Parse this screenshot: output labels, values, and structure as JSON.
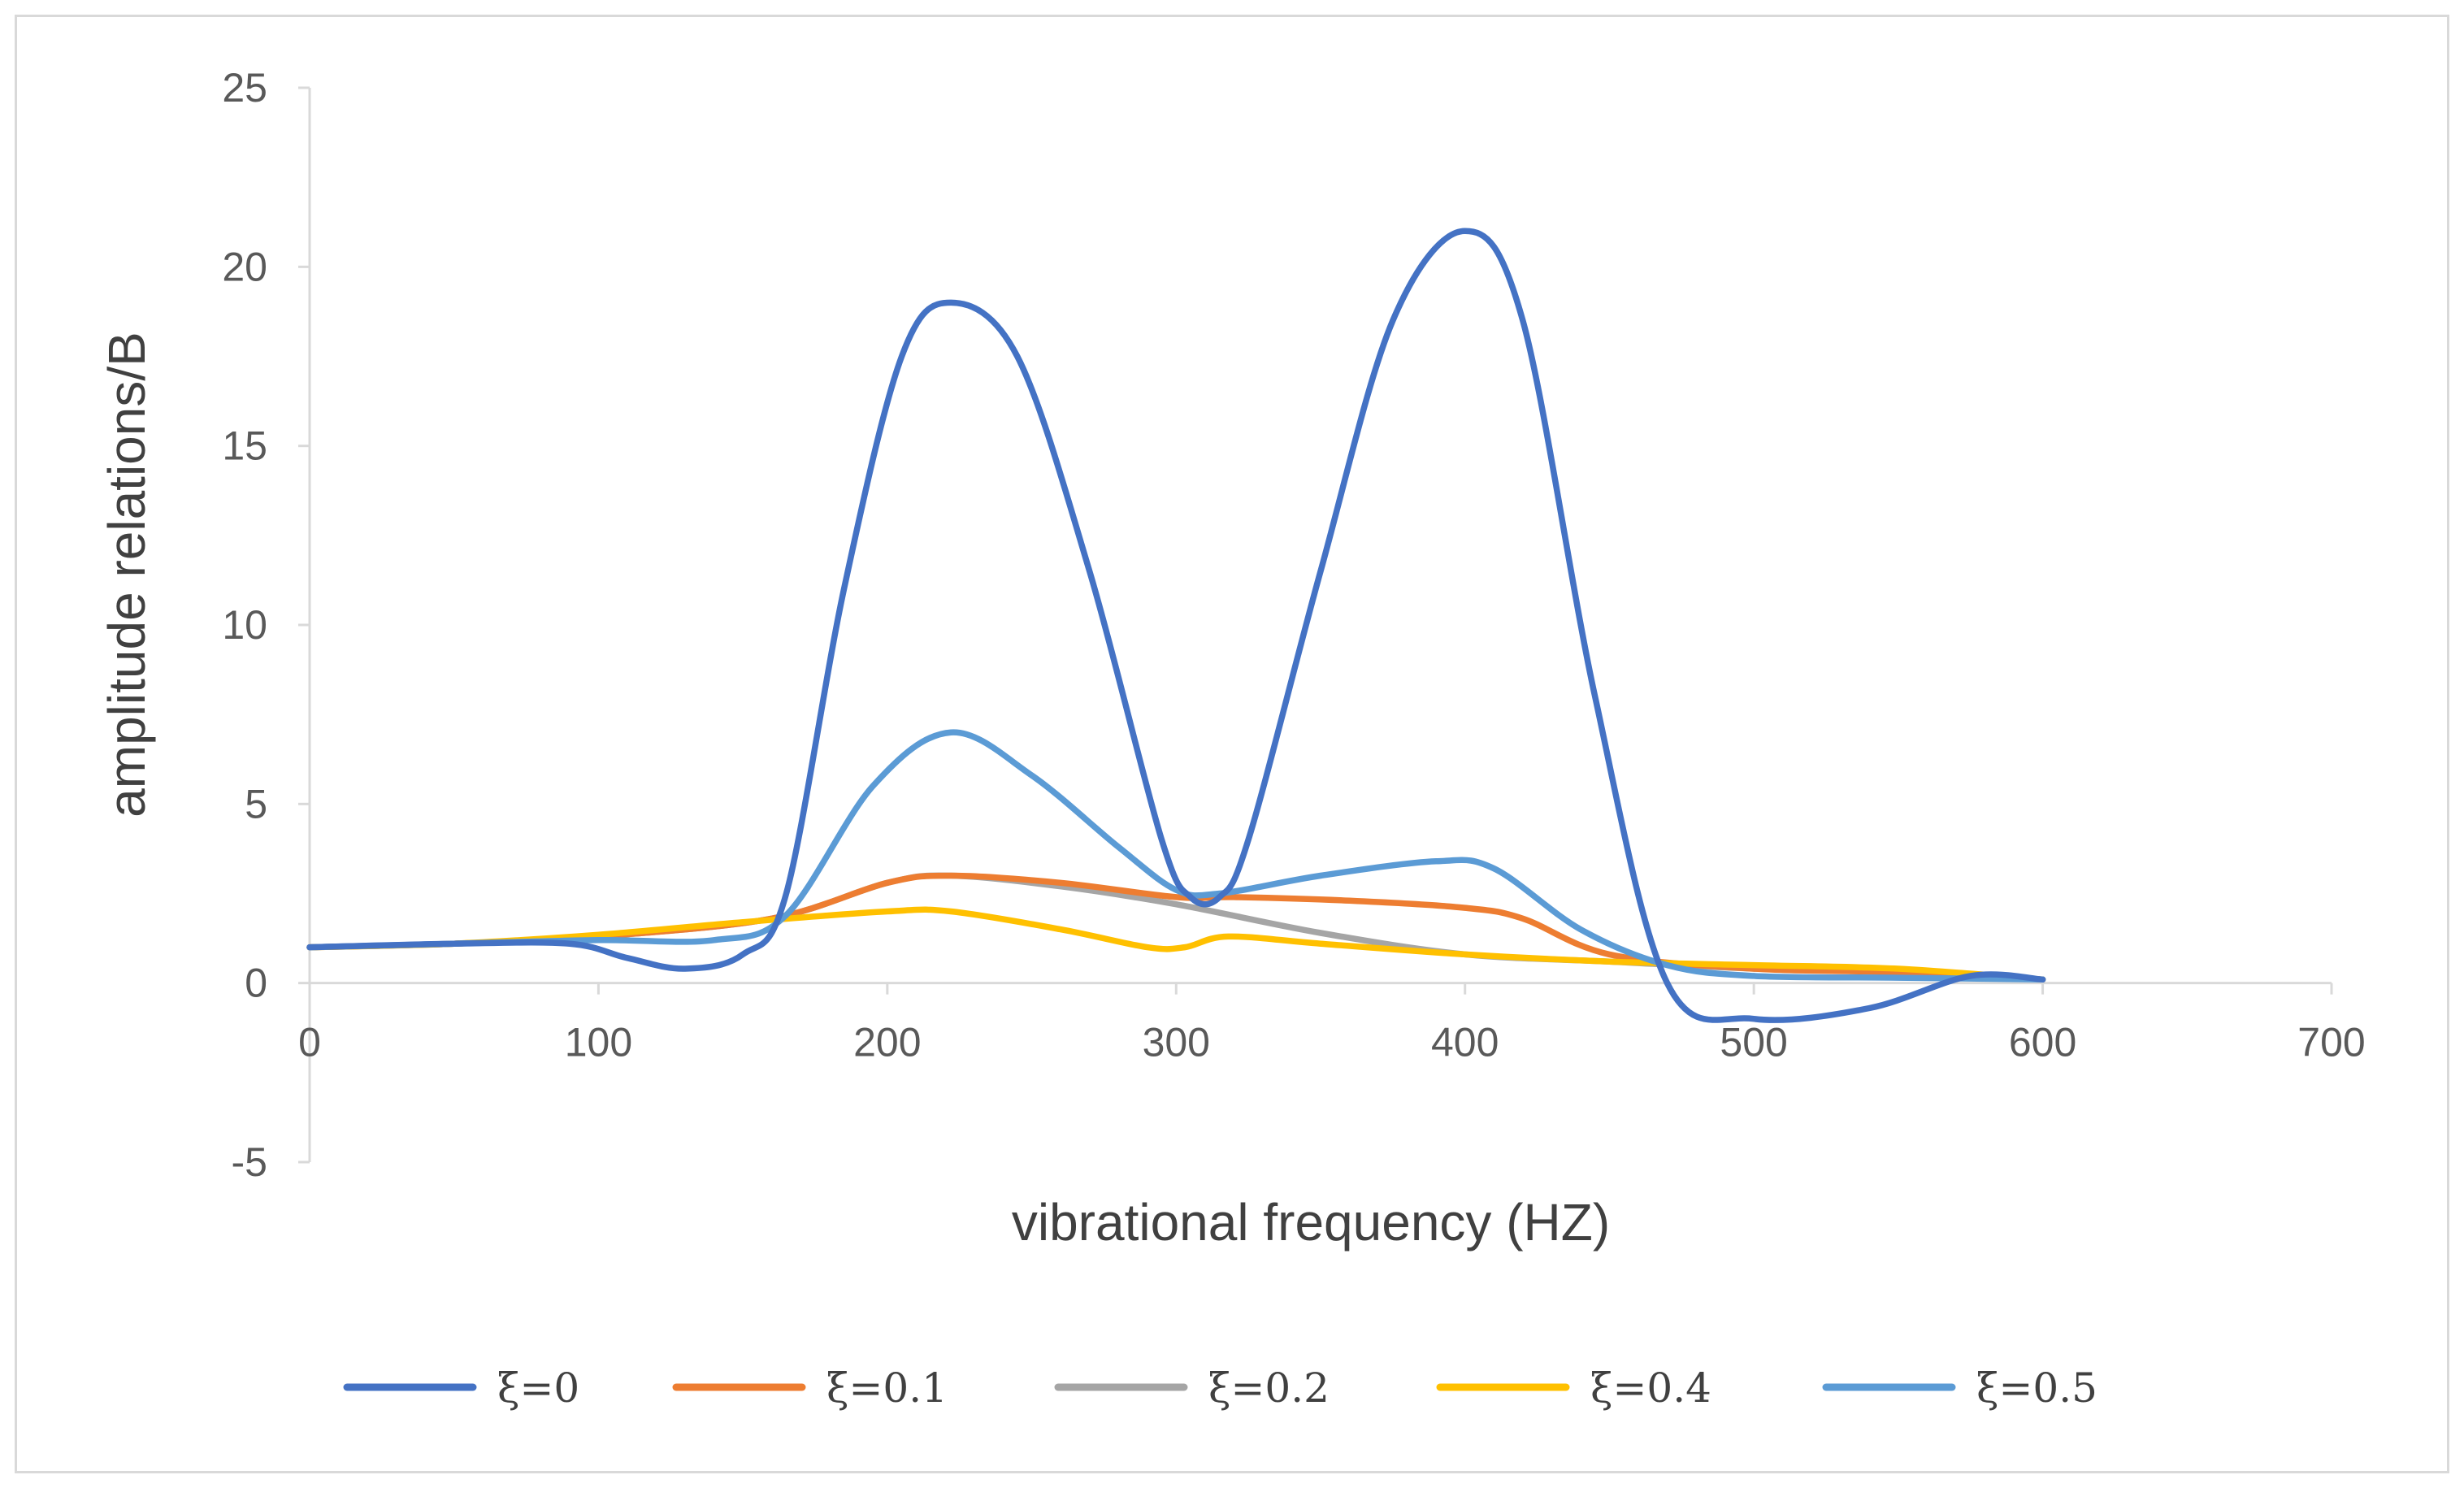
{
  "chart_data": {
    "type": "line",
    "title": "",
    "xlabel": "vibrational frequency (HZ)",
    "ylabel": "amplitude relations/B",
    "xlim": [
      0,
      700
    ],
    "ylim": [
      -5,
      25
    ],
    "xticks": [
      0,
      100,
      200,
      300,
      400,
      500,
      600,
      700
    ],
    "yticks": [
      -5,
      0,
      5,
      10,
      15,
      20,
      25
    ],
    "xtick_labels": [
      "0",
      "100",
      "200",
      "300",
      "400",
      "500",
      "600",
      "700"
    ],
    "ytick_labels": [
      "-5",
      "0",
      "5",
      "10",
      "15",
      "20",
      "25"
    ],
    "grid": false,
    "legend_position": "bottom",
    "series": [
      {
        "name": "ξ=0",
        "legend_label": "ξ=0",
        "color": "#4472c4",
        "x": [
          0,
          50,
          90,
          110,
          130,
          150,
          165,
          185,
          205,
          222,
          245,
          270,
          295,
          305,
          315,
          325,
          350,
          375,
          400,
          420,
          445,
          470,
          500,
          540,
          575,
          600
        ],
        "y": [
          1.0,
          1.1,
          1.1,
          0.7,
          0.4,
          0.8,
          2.5,
          11.0,
          17.5,
          19.0,
          17.5,
          11.5,
          4.0,
          2.4,
          2.4,
          4.0,
          11.5,
          18.5,
          21.0,
          18.5,
          8.0,
          0.0,
          -1.0,
          -0.7,
          0.2,
          0.1
        ]
      },
      {
        "name": "ξ=0.1",
        "legend_label": "ξ=0.1",
        "color": "#ed7d31",
        "x": [
          0,
          50,
          100,
          160,
          200,
          222,
          260,
          300,
          320,
          360,
          400,
          420,
          450,
          500,
          550,
          600
        ],
        "y": [
          1.0,
          1.1,
          1.3,
          1.8,
          2.8,
          3.0,
          2.8,
          2.4,
          2.4,
          2.3,
          2.1,
          1.8,
          0.8,
          0.4,
          0.3,
          0.1
        ]
      },
      {
        "name": "ξ=0.2",
        "legend_label": "ξ=0.2",
        "color": "#a5a5a5",
        "x": [
          0,
          50,
          100,
          160,
          200,
          222,
          260,
          300,
          350,
          400,
          450,
          500,
          550,
          600
        ],
        "y": [
          1.0,
          1.1,
          1.3,
          1.8,
          2.8,
          3.0,
          2.7,
          2.2,
          1.4,
          0.8,
          0.6,
          0.4,
          0.3,
          0.1
        ]
      },
      {
        "name": "ξ=0.4",
        "legend_label": "ξ=0.4",
        "color": "#ffc000",
        "x": [
          0,
          50,
          100,
          150,
          200,
          222,
          260,
          290,
          303,
          318,
          350,
          400,
          450,
          500,
          550,
          600
        ],
        "y": [
          1.0,
          1.1,
          1.35,
          1.7,
          2.0,
          2.0,
          1.5,
          1.0,
          1.0,
          1.3,
          1.1,
          0.8,
          0.6,
          0.5,
          0.4,
          0.1
        ]
      },
      {
        "name": "ξ=0.5",
        "legend_label": "ξ=0.5",
        "color": "#5b9bd5",
        "x": [
          0,
          50,
          100,
          140,
          165,
          195,
          222,
          250,
          280,
          300,
          315,
          350,
          390,
          410,
          440,
          470,
          500,
          550,
          600
        ],
        "y": [
          1.0,
          1.1,
          1.2,
          1.2,
          1.9,
          5.5,
          7.0,
          5.8,
          3.8,
          2.6,
          2.5,
          3.0,
          3.4,
          3.2,
          1.5,
          0.5,
          0.2,
          0.15,
          0.1
        ]
      }
    ]
  }
}
